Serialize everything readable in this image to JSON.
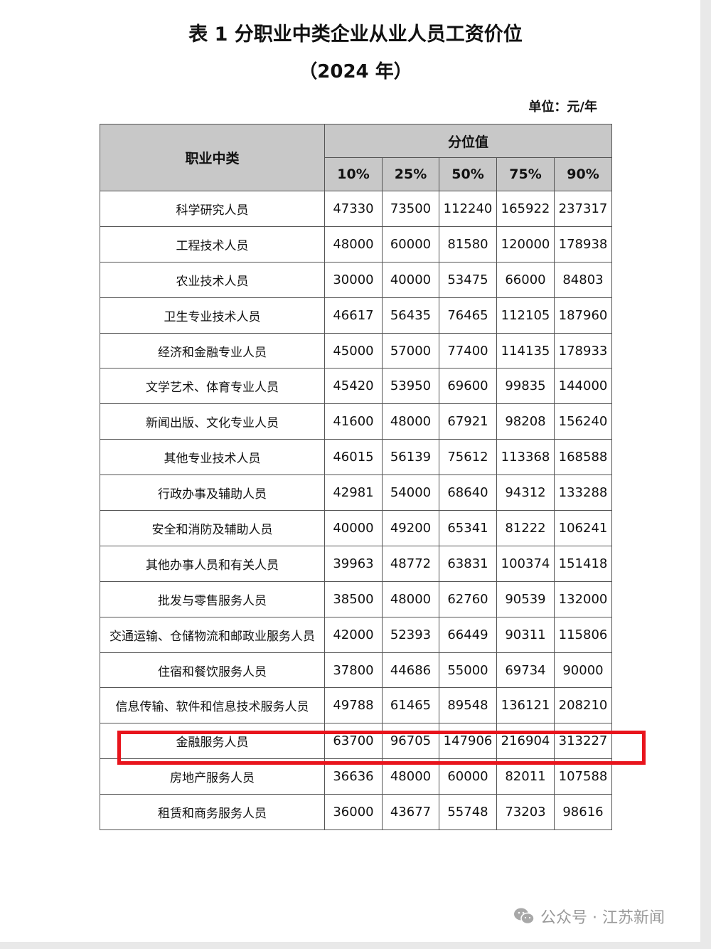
{
  "title": "表 1  分职业中类企业从业人员工资价位",
  "subtitle": "（2024 年）",
  "unit": "单位：元/年",
  "table": {
    "header_category": "职业中类",
    "header_group": "分位值",
    "percentiles": [
      "10%",
      "25%",
      "50%",
      "75%",
      "90%"
    ],
    "rows": [
      {
        "name": "科学研究人员",
        "values": [
          "47330",
          "73500",
          "112240",
          "165922",
          "237317"
        ]
      },
      {
        "name": "工程技术人员",
        "values": [
          "48000",
          "60000",
          "81580",
          "120000",
          "178938"
        ]
      },
      {
        "name": "农业技术人员",
        "values": [
          "30000",
          "40000",
          "53475",
          "66000",
          "84803"
        ]
      },
      {
        "name": "卫生专业技术人员",
        "values": [
          "46617",
          "56435",
          "76465",
          "112105",
          "187960"
        ]
      },
      {
        "name": "经济和金融专业人员",
        "values": [
          "45000",
          "57000",
          "77400",
          "114135",
          "178933"
        ]
      },
      {
        "name": "文学艺术、体育专业人员",
        "values": [
          "45420",
          "53950",
          "69600",
          "99835",
          "144000"
        ]
      },
      {
        "name": "新闻出版、文化专业人员",
        "values": [
          "41600",
          "48000",
          "67921",
          "98208",
          "156240"
        ]
      },
      {
        "name": "其他专业技术人员",
        "values": [
          "46015",
          "56139",
          "75612",
          "113368",
          "168588"
        ]
      },
      {
        "name": "行政办事及辅助人员",
        "values": [
          "42981",
          "54000",
          "68640",
          "94312",
          "133288"
        ]
      },
      {
        "name": "安全和消防及辅助人员",
        "values": [
          "40000",
          "49200",
          "65341",
          "81222",
          "106241"
        ]
      },
      {
        "name": "其他办事人员和有关人员",
        "values": [
          "39963",
          "48772",
          "63831",
          "100374",
          "151418"
        ]
      },
      {
        "name": "批发与零售服务人员",
        "values": [
          "38500",
          "48000",
          "62760",
          "90539",
          "132000"
        ]
      },
      {
        "name": "交通运输、仓储物流和邮政业服务人员",
        "values": [
          "42000",
          "52393",
          "66449",
          "90311",
          "115806"
        ]
      },
      {
        "name": "住宿和餐饮服务人员",
        "values": [
          "37800",
          "44686",
          "55000",
          "69734",
          "90000"
        ]
      },
      {
        "name": "信息传输、软件和信息技术服务人员",
        "values": [
          "49788",
          "61465",
          "89548",
          "136121",
          "208210"
        ]
      },
      {
        "name": "金融服务人员",
        "values": [
          "63700",
          "96705",
          "147906",
          "216904",
          "313227"
        ]
      },
      {
        "name": "房地产服务人员",
        "values": [
          "36636",
          "48000",
          "60000",
          "82011",
          "107588"
        ]
      },
      {
        "name": "租赁和商务服务人员",
        "values": [
          "36000",
          "43677",
          "55748",
          "73203",
          "98616"
        ]
      }
    ]
  },
  "highlight": {
    "row": "金融服务人员",
    "color": "#e8141c"
  },
  "watermark": {
    "icon": "wechat-icon",
    "text": "公众号 · 江苏新闻"
  }
}
